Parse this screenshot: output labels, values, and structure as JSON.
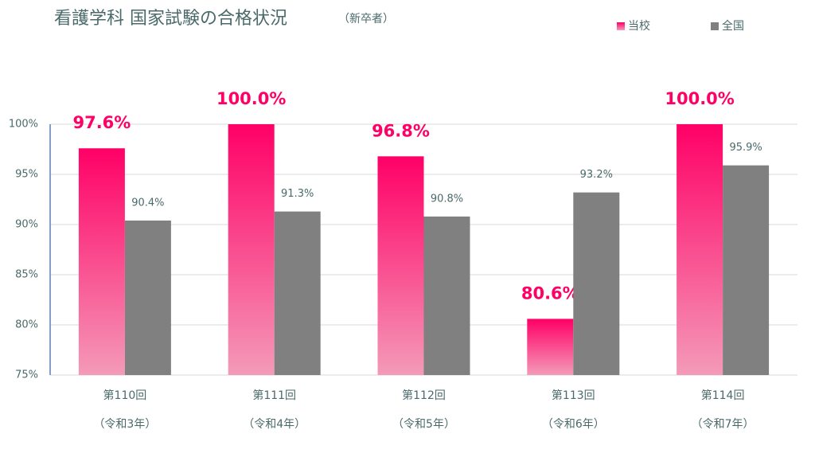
{
  "chart_data": {
    "type": "bar",
    "title": "看護学科 国家試験の合格状況",
    "subtitle": "（新卒者）",
    "categories": [
      [
        "第110回",
        "（令和3年）"
      ],
      [
        "第111回",
        "（令和4年）"
      ],
      [
        "第112回",
        "（令和5年）"
      ],
      [
        "第113回",
        "（令和6年）"
      ],
      [
        "第114回",
        "（令和7年）"
      ]
    ],
    "series": [
      {
        "name": "当校",
        "color": "#ff0066",
        "values": [
          97.6,
          100.0,
          96.8,
          80.6,
          100.0
        ],
        "value_labels": [
          "97.6%",
          "100.0%",
          "96.8%",
          "80.6%",
          "100.0%"
        ]
      },
      {
        "name": "全国",
        "color": "#808080",
        "values": [
          90.4,
          91.3,
          90.8,
          93.2,
          95.9
        ],
        "value_labels": [
          "90.4%",
          "91.3%",
          "90.8%",
          "93.2%",
          "95.9%"
        ]
      }
    ],
    "ylim": [
      75,
      100
    ],
    "yticks": [
      {
        "value": 75,
        "label": "75%"
      },
      {
        "value": 80,
        "label": "80%"
      },
      {
        "value": 85,
        "label": "85%"
      },
      {
        "value": 90,
        "label": "90%"
      },
      {
        "value": 95,
        "label": "95%"
      },
      {
        "value": 100,
        "label": "100%"
      }
    ],
    "grid": true
  }
}
